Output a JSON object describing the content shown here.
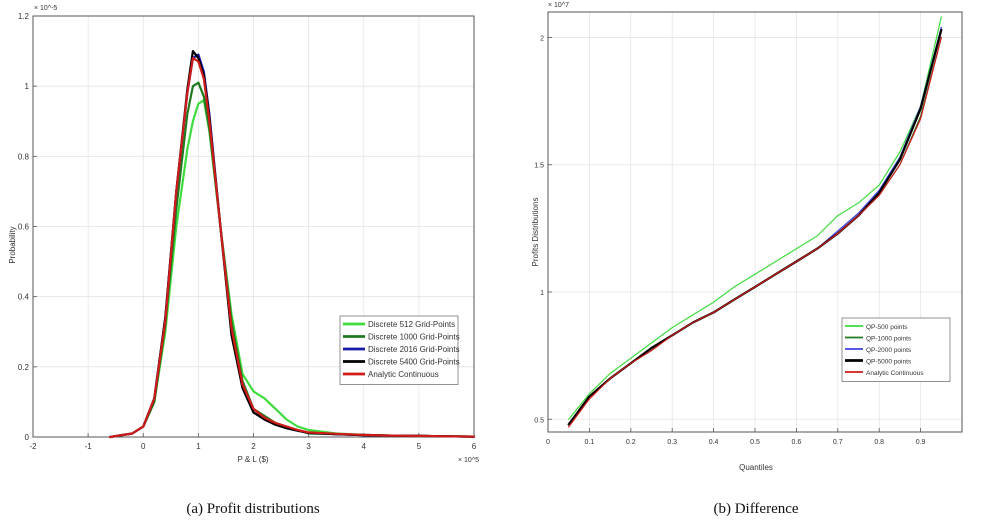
{
  "chart_data": [
    {
      "type": "line",
      "caption": "(a) Profit distributions",
      "ylabel": "Probability",
      "xlabel": "P & L ($)",
      "x_multiplier": "× 10^5",
      "y_multiplier": "× 10^-5",
      "xlim": [
        -2,
        6
      ],
      "ylim": [
        0,
        1.2
      ],
      "x_ticks": [
        "-2",
        "-1",
        "0",
        "1",
        "2",
        "3",
        "4",
        "5",
        "6"
      ],
      "y_ticks": [
        "0",
        "0.2",
        "0.4",
        "0.6",
        "0.8",
        "1",
        "1.2"
      ],
      "grid": true,
      "legend_position": "lower-right",
      "series": [
        {
          "name": "Discrete 512 Grid-Points",
          "color": "#3ddc3d",
          "width": 2.2,
          "x": [
            -0.6,
            -0.2,
            0.0,
            0.2,
            0.4,
            0.6,
            0.8,
            0.9,
            1.0,
            1.1,
            1.2,
            1.4,
            1.6,
            1.8,
            2.0,
            2.2,
            2.4,
            2.6,
            2.8,
            3.0,
            3.5,
            4.0,
            4.5,
            5.0,
            5.5,
            6.0
          ],
          "y": [
            0,
            0.01,
            0.03,
            0.1,
            0.3,
            0.6,
            0.82,
            0.9,
            0.95,
            0.96,
            0.87,
            0.6,
            0.35,
            0.18,
            0.13,
            0.11,
            0.08,
            0.05,
            0.03,
            0.02,
            0.01,
            0.006,
            0.004,
            0.003,
            0.002,
            0.001
          ]
        },
        {
          "name": "Discrete 1000 Grid-Points",
          "color": "#1f7a1f",
          "width": 2.2,
          "x": [
            -0.6,
            -0.2,
            0.0,
            0.2,
            0.4,
            0.6,
            0.8,
            0.9,
            1.0,
            1.1,
            1.2,
            1.4,
            1.6,
            1.8,
            2.0,
            2.2,
            2.4,
            2.6,
            2.8,
            3.0,
            3.5,
            4.0,
            4.5,
            5.0,
            5.5,
            6.0
          ],
          "y": [
            0,
            0.01,
            0.03,
            0.1,
            0.32,
            0.65,
            0.92,
            1.0,
            1.01,
            0.97,
            0.88,
            0.6,
            0.33,
            0.16,
            0.08,
            0.06,
            0.04,
            0.03,
            0.02,
            0.01,
            0.008,
            0.006,
            0.004,
            0.003,
            0.002,
            0.001
          ]
        },
        {
          "name": "Discrete 2016 Grid-Points",
          "color": "#1a1aa8",
          "width": 2.2,
          "x": [
            -0.6,
            -0.2,
            0.0,
            0.2,
            0.4,
            0.6,
            0.8,
            0.9,
            1.0,
            1.1,
            1.2,
            1.4,
            1.6,
            1.8,
            2.0,
            2.2,
            2.4,
            2.6,
            2.8,
            3.0,
            3.5,
            4.0,
            4.5,
            5.0,
            5.5,
            6.0
          ],
          "y": [
            0,
            0.01,
            0.03,
            0.11,
            0.34,
            0.7,
            0.98,
            1.08,
            1.09,
            1.04,
            0.92,
            0.6,
            0.3,
            0.14,
            0.07,
            0.05,
            0.035,
            0.025,
            0.018,
            0.012,
            0.008,
            0.005,
            0.004,
            0.003,
            0.002,
            0.001
          ]
        },
        {
          "name": "Discrete 5400 Grid-Points",
          "color": "#000000",
          "width": 2.2,
          "x": [
            -0.6,
            -0.2,
            0.0,
            0.2,
            0.4,
            0.6,
            0.8,
            0.9,
            1.0,
            1.1,
            1.2,
            1.4,
            1.6,
            1.8,
            2.0,
            2.2,
            2.4,
            2.6,
            2.8,
            3.0,
            3.5,
            4.0,
            4.5,
            5.0,
            5.5,
            6.0
          ],
          "y": [
            0,
            0.01,
            0.03,
            0.11,
            0.34,
            0.7,
            0.99,
            1.1,
            1.08,
            1.03,
            0.91,
            0.6,
            0.29,
            0.14,
            0.07,
            0.05,
            0.035,
            0.025,
            0.018,
            0.012,
            0.008,
            0.005,
            0.004,
            0.003,
            0.002,
            0.001
          ]
        },
        {
          "name": "Analytic Continuous",
          "color": "#d11a1a",
          "width": 2.2,
          "x": [
            -0.6,
            -0.2,
            0.0,
            0.2,
            0.4,
            0.6,
            0.8,
            0.9,
            1.0,
            1.1,
            1.2,
            1.4,
            1.6,
            1.8,
            2.0,
            2.2,
            2.4,
            2.6,
            2.8,
            3.0,
            3.5,
            4.0,
            4.5,
            5.0,
            5.5,
            6.0
          ],
          "y": [
            0,
            0.01,
            0.03,
            0.11,
            0.33,
            0.7,
            0.98,
            1.08,
            1.07,
            1.02,
            0.9,
            0.6,
            0.31,
            0.15,
            0.08,
            0.055,
            0.04,
            0.03,
            0.02,
            0.013,
            0.009,
            0.006,
            0.004,
            0.003,
            0.002,
            0.001
          ]
        }
      ]
    },
    {
      "type": "line",
      "caption": "(b) Difference",
      "ylabel": "Profits Distributions",
      "xlabel": "Quantiles",
      "y_multiplier": "× 10^7",
      "xlim": [
        0,
        1
      ],
      "ylim": [
        0.45,
        2.1
      ],
      "x_ticks": [
        "0",
        "0.1",
        "0.2",
        "0.3",
        "0.4",
        "0.5",
        "0.6",
        "0.7",
        "0.8",
        "0.9"
      ],
      "y_ticks": [
        "0.5",
        "1",
        "1.5",
        "2"
      ],
      "grid": true,
      "legend_position": "lower-right",
      "series": [
        {
          "name": "QP-500 points",
          "color": "#3ddc3d",
          "width": 1.2,
          "x": [
            0.05,
            0.1,
            0.15,
            0.2,
            0.25,
            0.3,
            0.35,
            0.4,
            0.45,
            0.5,
            0.55,
            0.6,
            0.65,
            0.7,
            0.75,
            0.8,
            0.85,
            0.9,
            0.95
          ],
          "y": [
            0.5,
            0.6,
            0.68,
            0.74,
            0.8,
            0.86,
            0.91,
            0.96,
            1.02,
            1.07,
            1.12,
            1.17,
            1.22,
            1.3,
            1.35,
            1.42,
            1.55,
            1.73,
            2.08
          ]
        },
        {
          "name": "QP-1000 points",
          "color": "#1f7a1f",
          "width": 1.2,
          "x": [
            0.05,
            0.1,
            0.15,
            0.2,
            0.25,
            0.3,
            0.35,
            0.4,
            0.45,
            0.5,
            0.55,
            0.6,
            0.65,
            0.7,
            0.75,
            0.8,
            0.85,
            0.9,
            0.95
          ],
          "y": [
            0.48,
            0.59,
            0.66,
            0.72,
            0.77,
            0.83,
            0.88,
            0.92,
            0.97,
            1.02,
            1.07,
            1.12,
            1.17,
            1.23,
            1.3,
            1.38,
            1.5,
            1.69,
            2.0
          ]
        },
        {
          "name": "QP-2000 points",
          "color": "#4040e0",
          "width": 1.2,
          "x": [
            0.05,
            0.1,
            0.15,
            0.2,
            0.25,
            0.3,
            0.35,
            0.4,
            0.45,
            0.5,
            0.55,
            0.6,
            0.65,
            0.7,
            0.75,
            0.8,
            0.85,
            0.9,
            0.95
          ],
          "y": [
            0.48,
            0.59,
            0.66,
            0.72,
            0.78,
            0.83,
            0.88,
            0.92,
            0.97,
            1.02,
            1.07,
            1.12,
            1.17,
            1.24,
            1.31,
            1.4,
            1.53,
            1.73,
            2.04
          ]
        },
        {
          "name": "QP-5000 points",
          "color": "#000000",
          "width": 2.2,
          "x": [
            0.05,
            0.1,
            0.15,
            0.2,
            0.25,
            0.3,
            0.35,
            0.4,
            0.45,
            0.5,
            0.55,
            0.6,
            0.65,
            0.7,
            0.75,
            0.8,
            0.85,
            0.9,
            0.95
          ],
          "y": [
            0.48,
            0.59,
            0.66,
            0.72,
            0.78,
            0.83,
            0.88,
            0.92,
            0.97,
            1.02,
            1.07,
            1.12,
            1.17,
            1.23,
            1.3,
            1.39,
            1.52,
            1.72,
            2.03
          ]
        },
        {
          "name": "Analytic Continuous",
          "color": "#d11a1a",
          "width": 1.2,
          "x": [
            0.05,
            0.1,
            0.15,
            0.2,
            0.25,
            0.3,
            0.35,
            0.4,
            0.45,
            0.5,
            0.55,
            0.6,
            0.65,
            0.7,
            0.75,
            0.8,
            0.85,
            0.9,
            0.95
          ],
          "y": [
            0.47,
            0.58,
            0.66,
            0.72,
            0.77,
            0.83,
            0.88,
            0.92,
            0.97,
            1.02,
            1.07,
            1.12,
            1.17,
            1.23,
            1.3,
            1.38,
            1.5,
            1.68,
            2.0
          ]
        }
      ]
    }
  ]
}
